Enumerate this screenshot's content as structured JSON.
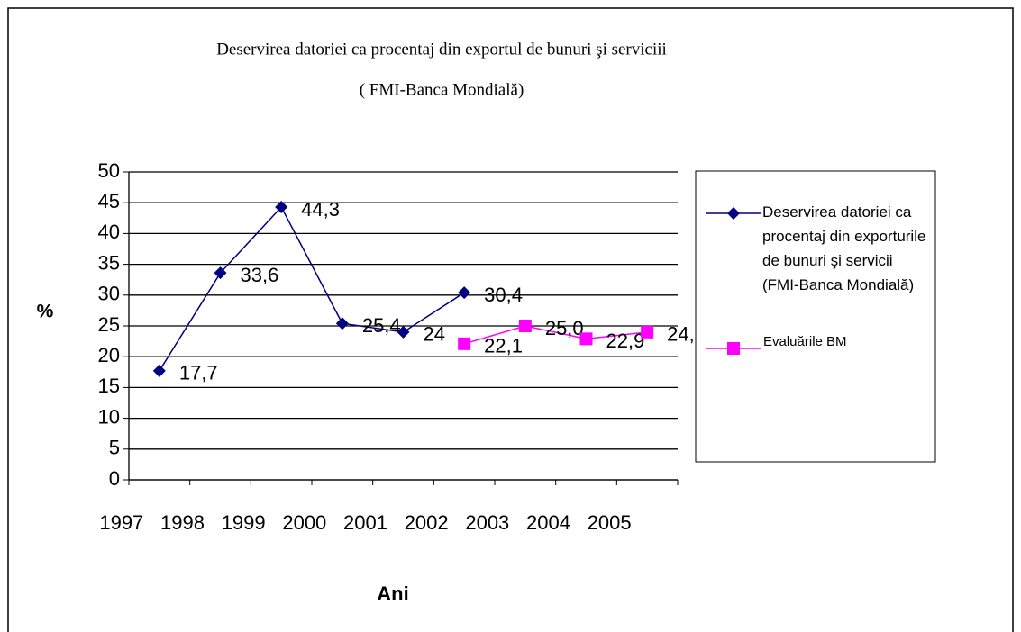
{
  "chart_data": {
    "type": "line",
    "title": "Deservirea datoriei ca procentaj din exportul de bunuri şi serviciii",
    "subtitle": "( FMI-Banca Mondială)",
    "y_label": "%",
    "x_label": "Ani",
    "categories": [
      "1997",
      "1998",
      "1999",
      "2000",
      "2001",
      "2002",
      "2003",
      "2004",
      "2005"
    ],
    "series": [
      {
        "name": "Deservirea datoriei ca procentaj din exporturile de bunuri şi servicii (FMI-Banca Mondială)",
        "color": "#000080",
        "marker": "diamond",
        "values": [
          17.7,
          33.6,
          44.3,
          25.4,
          24,
          30.4,
          null,
          null,
          null
        ],
        "value_labels": [
          "17,7",
          "33,6",
          "44,3",
          "25,4",
          "24",
          "30,4",
          null,
          null,
          null
        ]
      },
      {
        "name": "Evaluările BM",
        "color": "#ff00ff",
        "marker": "square",
        "values": [
          null,
          null,
          null,
          null,
          null,
          22.1,
          25.0,
          22.9,
          24
        ],
        "value_labels": [
          null,
          null,
          null,
          null,
          null,
          "22,1",
          "25,0",
          "22,9",
          "24,"
        ]
      }
    ],
    "ylim": [
      0,
      50
    ],
    "yticks": [
      0,
      5,
      10,
      15,
      20,
      25,
      30,
      35,
      40,
      45,
      50
    ],
    "grid": true
  }
}
